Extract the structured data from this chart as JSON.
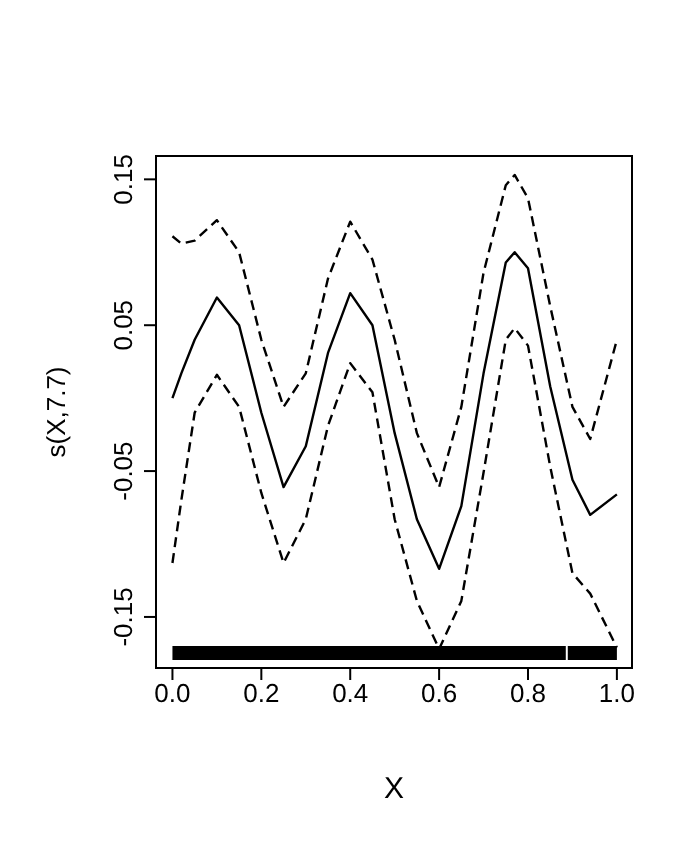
{
  "chart_data": {
    "type": "line",
    "xlabel": "X",
    "ylabel": "s(X,7.7)",
    "x": [
      0,
      0.02,
      0.05,
      0.1,
      0.15,
      0.2,
      0.25,
      0.3,
      0.35,
      0.4,
      0.45,
      0.5,
      0.55,
      0.6,
      0.65,
      0.7,
      0.75,
      0.77,
      0.8,
      0.85,
      0.9,
      0.94,
      1.0
    ],
    "series": [
      {
        "color": "#000000",
        "line_style": "solid",
        "values": [
          0.0,
          0.017,
          0.04,
          0.069,
          0.05,
          -0.01,
          -0.061,
          -0.033,
          0.031,
          0.072,
          0.05,
          -0.024,
          -0.083,
          -0.117,
          -0.074,
          0.017,
          0.093,
          0.1,
          0.089,
          0.008,
          -0.056,
          -0.08,
          -0.066
        ]
      },
      {
        "color": "#000000",
        "line_style": "dashed",
        "values": [
          0.111,
          0.106,
          0.108,
          0.122,
          0.1,
          0.04,
          -0.006,
          0.017,
          0.082,
          0.121,
          0.095,
          0.04,
          -0.024,
          -0.061,
          -0.006,
          0.086,
          0.146,
          0.153,
          0.137,
          0.063,
          -0.006,
          -0.028,
          0.04
        ]
      },
      {
        "color": "#000000",
        "line_style": "dashed",
        "values": [
          -0.113,
          -0.07,
          -0.01,
          0.016,
          -0.006,
          -0.065,
          -0.113,
          -0.083,
          -0.019,
          0.024,
          0.004,
          -0.083,
          -0.139,
          -0.172,
          -0.139,
          -0.051,
          0.04,
          0.048,
          0.036,
          -0.047,
          -0.12,
          -0.134,
          -0.171
        ]
      }
    ],
    "xlim": [
      -0.037,
      1.034
    ],
    "xticks": [
      {
        "value": 0,
        "label": "0.0"
      },
      {
        "value": 0.2,
        "label": "0.2"
      },
      {
        "value": 0.4,
        "label": "0.4"
      },
      {
        "value": 0.6,
        "label": "0.6"
      },
      {
        "value": 0.8,
        "label": "0.8"
      },
      {
        "value": 1,
        "label": "1.0"
      }
    ],
    "ylim": [
      -0.185,
      0.166
    ],
    "yticks": [
      -0.15,
      -0.05,
      0.05,
      0.15
    ],
    "grid": false,
    "legend": false,
    "marker": "none"
  }
}
